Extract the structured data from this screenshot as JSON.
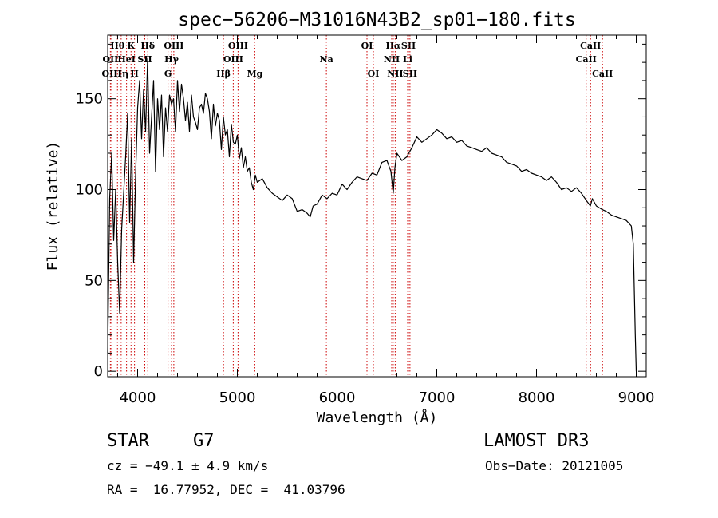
{
  "chart_data": {
    "type": "line",
    "title": "spec−56206−M31016N43B2_sp01−180.fits",
    "xlabel": "Wavelength (Å)",
    "ylabel": "Flux (relative)",
    "xlim": [
      3700,
      9100
    ],
    "ylim": [
      -3,
      185
    ],
    "xticks": [
      4000,
      5000,
      6000,
      7000,
      8000,
      9000
    ],
    "yticks": [
      0,
      50,
      100,
      150
    ],
    "series": [
      {
        "name": "flux",
        "x": [
          3700,
          3720,
          3740,
          3760,
          3780,
          3800,
          3820,
          3840,
          3860,
          3880,
          3900,
          3920,
          3940,
          3960,
          3980,
          4000,
          4020,
          4040,
          4060,
          4080,
          4100,
          4120,
          4140,
          4160,
          4180,
          4200,
          4220,
          4240,
          4260,
          4280,
          4300,
          4320,
          4340,
          4360,
          4380,
          4400,
          4420,
          4440,
          4460,
          4480,
          4500,
          4520,
          4540,
          4560,
          4580,
          4600,
          4620,
          4640,
          4660,
          4680,
          4700,
          4720,
          4740,
          4760,
          4780,
          4800,
          4820,
          4840,
          4860,
          4880,
          4900,
          4920,
          4940,
          4960,
          4980,
          5000,
          5020,
          5040,
          5060,
          5080,
          5100,
          5120,
          5140,
          5160,
          5180,
          5200,
          5250,
          5300,
          5350,
          5400,
          5450,
          5500,
          5550,
          5600,
          5650,
          5700,
          5730,
          5760,
          5800,
          5850,
          5900,
          5950,
          6000,
          6050,
          6100,
          6150,
          6200,
          6250,
          6300,
          6350,
          6400,
          6450,
          6500,
          6540,
          6563,
          6580,
          6600,
          6650,
          6700,
          6750,
          6800,
          6850,
          6900,
          6950,
          7000,
          7050,
          7100,
          7150,
          7200,
          7250,
          7300,
          7350,
          7400,
          7450,
          7500,
          7550,
          7600,
          7650,
          7700,
          7750,
          7800,
          7850,
          7900,
          7950,
          8000,
          8050,
          8100,
          8150,
          8200,
          8250,
          8300,
          8350,
          8400,
          8450,
          8500,
          8540,
          8560,
          8600,
          8660,
          8700,
          8750,
          8800,
          8850,
          8900,
          8950,
          8970,
          8990,
          9000
        ],
        "values": [
          10,
          95,
          120,
          72,
          100,
          60,
          32,
          78,
          98,
          118,
          142,
          82,
          128,
          60,
          108,
          145,
          160,
          128,
          155,
          132,
          172,
          120,
          140,
          160,
          110,
          150,
          133,
          152,
          118,
          145,
          132,
          152,
          147,
          150,
          132,
          160,
          143,
          158,
          150,
          138,
          148,
          132,
          152,
          140,
          137,
          133,
          145,
          147,
          142,
          153,
          150,
          143,
          128,
          147,
          135,
          142,
          138,
          122,
          140,
          130,
          133,
          118,
          136,
          126,
          125,
          130,
          117,
          123,
          112,
          118,
          110,
          112,
          104,
          100,
          108,
          104,
          106,
          101,
          98,
          96,
          94,
          97,
          95,
          88,
          89,
          87,
          85,
          91,
          92,
          97,
          95,
          98,
          97,
          103,
          100,
          104,
          107,
          106,
          105,
          109,
          108,
          115,
          116,
          110,
          98,
          112,
          120,
          116,
          118,
          123,
          129,
          126,
          128,
          130,
          133,
          131,
          128,
          129,
          126,
          127,
          124,
          123,
          122,
          121,
          123,
          120,
          119,
          118,
          115,
          114,
          113,
          110,
          111,
          109,
          108,
          107,
          105,
          107,
          104,
          100,
          101,
          99,
          101,
          98,
          94,
          91,
          95,
          91,
          89,
          88,
          86,
          85,
          84,
          83,
          80,
          70,
          20,
          0
        ]
      }
    ],
    "spectral_lines": [
      {
        "label": "Hθ",
        "wl": 3798,
        "row": 1
      },
      {
        "label": "OII",
        "wl": 3727,
        "row": 2
      },
      {
        "label": "OIII",
        "wl": 3740,
        "row": 3
      },
      {
        "label": "K",
        "wl": 3934,
        "row": 1
      },
      {
        "label": "HeI",
        "wl": 3889,
        "row": 2
      },
      {
        "label": "Hη",
        "wl": 3835,
        "row": 3
      },
      {
        "label": "Hδ",
        "wl": 4102,
        "row": 1
      },
      {
        "label": "SII",
        "wl": 4072,
        "row": 2
      },
      {
        "label": "H",
        "wl": 3969,
        "row": 3
      },
      {
        "label": "OIII",
        "wl": 4363,
        "row": 1
      },
      {
        "label": "Hγ",
        "wl": 4340,
        "row": 2
      },
      {
        "label": "G",
        "wl": 4305,
        "row": 3
      },
      {
        "label": "OIII",
        "wl": 5007,
        "row": 1
      },
      {
        "label": "OIII",
        "wl": 4959,
        "row": 2
      },
      {
        "label": "Hβ",
        "wl": 4861,
        "row": 3
      },
      {
        "label": "Mg",
        "wl": 5175,
        "row": 3
      },
      {
        "label": "Na",
        "wl": 5893,
        "row": 2
      },
      {
        "label": "OI",
        "wl": 6300,
        "row": 1
      },
      {
        "label": "OI",
        "wl": 6364,
        "row": 3
      },
      {
        "label": "Hα",
        "wl": 6563,
        "row": 1
      },
      {
        "label": "SII",
        "wl": 6716,
        "row": 1
      },
      {
        "label": "NII",
        "wl": 6548,
        "row": 2
      },
      {
        "label": "Li",
        "wl": 6708,
        "row": 2
      },
      {
        "label": "NII",
        "wl": 6583,
        "row": 3
      },
      {
        "label": "SII",
        "wl": 6731,
        "row": 3
      },
      {
        "label": "CaII",
        "wl": 8542,
        "row": 1
      },
      {
        "label": "CaII",
        "wl": 8498,
        "row": 2
      },
      {
        "label": "CaII",
        "wl": 8662,
        "row": 3
      }
    ],
    "colors": {
      "spectrum": "#000000",
      "line_marker": "#cc0000",
      "axes": "#000000"
    }
  },
  "info": {
    "object_class": "STAR",
    "subclass": "G7",
    "survey": "LAMOST DR3",
    "cz": "cz = −49.1 ± 4.9 km/s",
    "obs_date": "Obs−Date: 20121005",
    "coords": "RA =  16.77952, DEC =  41.03796"
  }
}
